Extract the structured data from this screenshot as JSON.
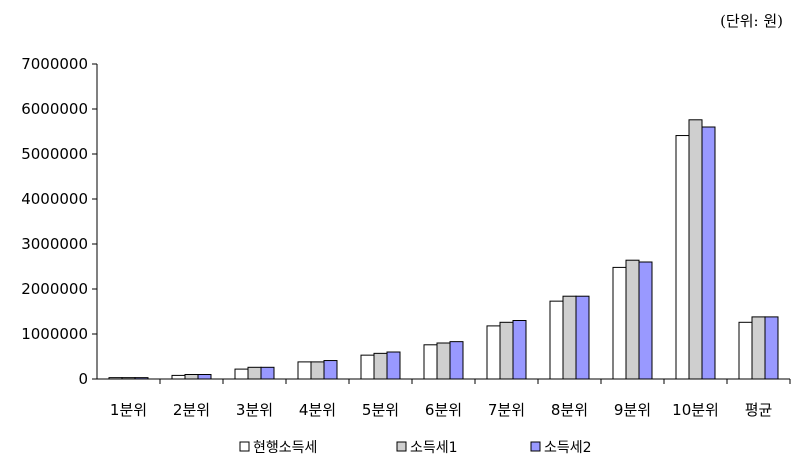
{
  "unit_note": "(단위: 원)",
  "colors": {
    "series": [
      "#ffffff",
      "#cfcfcf",
      "#9999ff"
    ],
    "axis": "#000000",
    "bar_stroke": "#000000"
  },
  "chart_data": {
    "type": "bar",
    "title": "",
    "xlabel": "",
    "ylabel": "",
    "ylim": [
      0,
      7000000
    ],
    "yticks": [
      "0",
      "1000000",
      "2000000",
      "3000000",
      "4000000",
      "5000000",
      "6000000",
      "7000000"
    ],
    "grid": false,
    "legend_position": "bottom",
    "categories": [
      "1분위",
      "2분위",
      "3분위",
      "4분위",
      "5분위",
      "6분위",
      "7분위",
      "8분위",
      "9분위",
      "10분위",
      "평균"
    ],
    "series": [
      {
        "name": "현행소득세",
        "values": [
          30000,
          80000,
          220000,
          380000,
          530000,
          760000,
          1180000,
          1730000,
          2480000,
          5410000,
          1260000
        ]
      },
      {
        "name": "소득세1",
        "values": [
          30000,
          100000,
          260000,
          380000,
          570000,
          800000,
          1260000,
          1840000,
          2640000,
          5760000,
          1380000
        ]
      },
      {
        "name": "소득세2",
        "values": [
          30000,
          100000,
          260000,
          410000,
          600000,
          830000,
          1300000,
          1840000,
          2600000,
          5600000,
          1380000
        ]
      }
    ]
  }
}
